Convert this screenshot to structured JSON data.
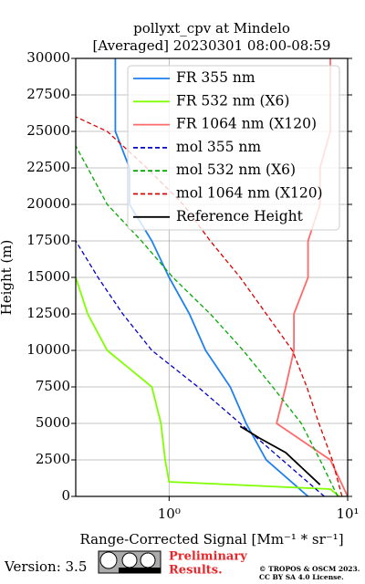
{
  "chart_data": {
    "type": "line",
    "title": "pollyxt_cpv at Mindelo",
    "subtitle": "[Averaged] 20230301 08:00-08:59",
    "xlabel": "Range-Corrected Signal [Mm⁻¹ * sr⁻¹]",
    "ylabel": "Height (m)",
    "xscale": "log",
    "xlim": [
      0.3,
      10
    ],
    "ylim": [
      0,
      30000
    ],
    "xticks": [
      {
        "value": 1,
        "label": "10⁰"
      },
      {
        "value": 10,
        "label": "10¹"
      }
    ],
    "yticks": [
      0,
      2500,
      5000,
      7500,
      10000,
      12500,
      15000,
      17500,
      20000,
      22500,
      25000,
      27500,
      30000
    ],
    "grid": true,
    "legend": "upper right",
    "series": [
      {
        "name": "FR 355 nm",
        "color": "#1e80f0",
        "style": "solid",
        "heights": [
          0,
          2500,
          5000,
          7500,
          10000,
          12500,
          15000,
          17500,
          20000,
          22500,
          25000,
          27500,
          30000
        ],
        "values": [
          6.0,
          3.5,
          2.7,
          2.2,
          1.6,
          1.3,
          1.0,
          0.8,
          0.6,
          0.6,
          0.5,
          0.5,
          0.5
        ]
      },
      {
        "name": "FR 532 nm (X6)",
        "color": "#80ff00",
        "style": "solid",
        "heights": [
          0,
          500,
          1000,
          2500,
          5000,
          7500,
          10000,
          12500,
          15000
        ],
        "values": [
          9.0,
          8.0,
          1.0,
          0.95,
          0.9,
          0.8,
          0.45,
          0.35,
          0.3
        ]
      },
      {
        "name": "FR 1064 nm (X120)",
        "color": "#ff6a6a",
        "style": "solid",
        "heights": [
          0,
          2500,
          5000,
          7500,
          10000,
          12500,
          15000,
          17500,
          20000,
          22500,
          25000,
          27500,
          30000
        ],
        "values": [
          10,
          8,
          4,
          4.5,
          5,
          5,
          6,
          6,
          7,
          7,
          8,
          8,
          8
        ]
      },
      {
        "name": "mol 355 nm",
        "color": "#0000cc",
        "style": "dashed",
        "heights": [
          0,
          2500,
          5000,
          7500,
          10000,
          12500,
          15000,
          17500
        ],
        "values": [
          7.4,
          4.3,
          2.5,
          1.45,
          0.8,
          0.55,
          0.4,
          0.3
        ]
      },
      {
        "name": "mol 532 nm (X6)",
        "color": "#00aa00",
        "style": "dashed",
        "heights": [
          0,
          2500,
          5000,
          7500,
          10000,
          12500,
          15000,
          17500,
          20000,
          22500,
          24000
        ],
        "values": [
          8.8,
          7.0,
          5.5,
          3.8,
          2.6,
          1.7,
          1.05,
          0.7,
          0.45,
          0.35,
          0.3
        ]
      },
      {
        "name": "mol 1064 nm (X120)",
        "color": "#dd0000",
        "style": "dashed",
        "heights": [
          0,
          2500,
          5000,
          7500,
          10000,
          12500,
          15000,
          17500,
          20000,
          22500,
          25000,
          26000
        ],
        "values": [
          9.3,
          8.2,
          6.9,
          5.9,
          4.9,
          3.5,
          2.5,
          1.7,
          1.2,
          0.75,
          0.45,
          0.3
        ]
      },
      {
        "name": "Reference Height",
        "color": "#000000",
        "style": "solid",
        "heights": [
          800,
          2000,
          3000,
          4000,
          4800
        ],
        "values": [
          7.0,
          5.5,
          4.5,
          3.2,
          2.5
        ]
      }
    ],
    "footer": {
      "version": "Version: 3.5",
      "preliminary": [
        "Preliminary",
        "Results."
      ],
      "copyright": [
        "© TROPOS & OSCM 2023.",
        "CC BY SA 4.0 License."
      ]
    }
  }
}
